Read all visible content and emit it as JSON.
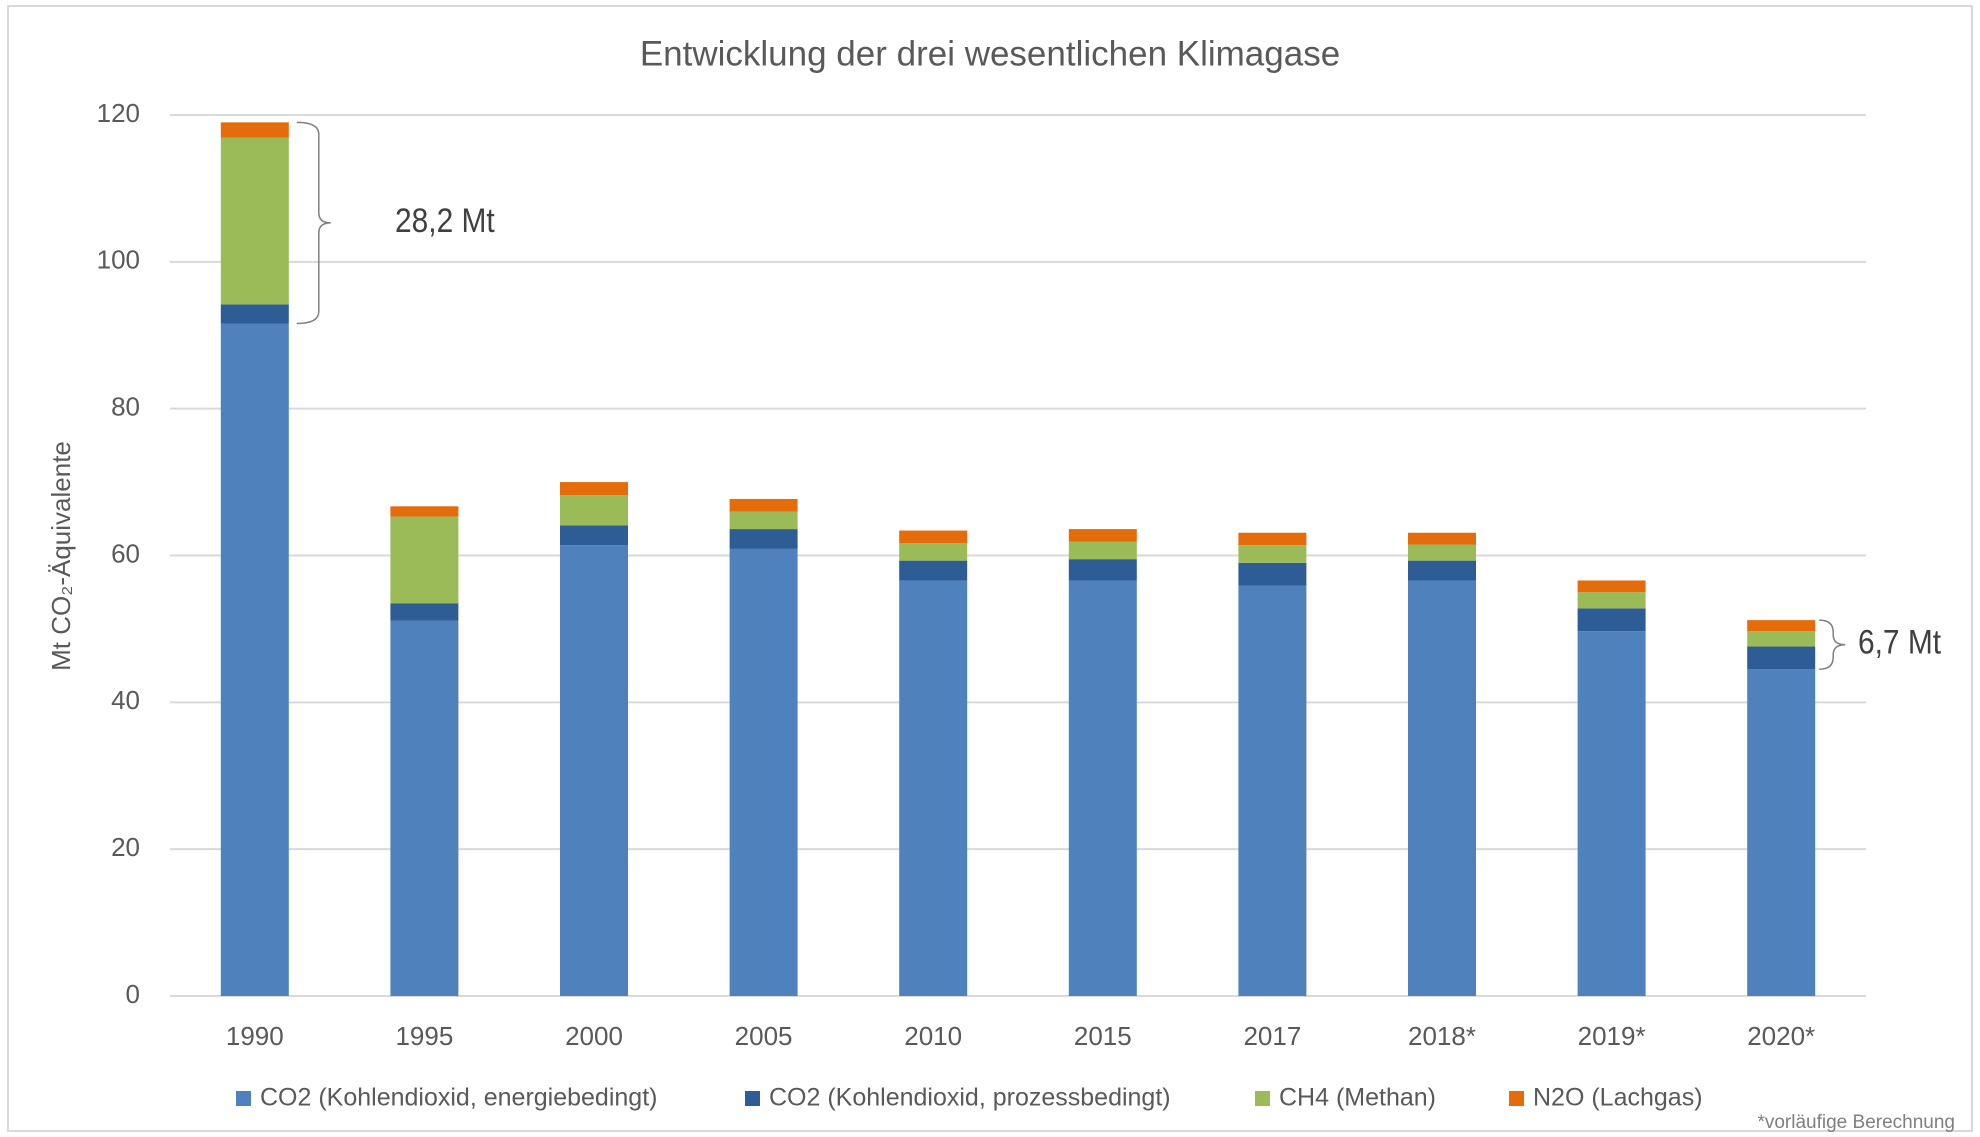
{
  "chart_data": {
    "type": "stacked_bar",
    "title": "Entwicklung der drei wesentlichen Klimagase",
    "y_label": "Mt CO₂-Äquivalente",
    "categories": [
      "1990",
      "1995",
      "2000",
      "2005",
      "2010",
      "2015",
      "2017",
      "2018*",
      "2019*",
      "2020*"
    ],
    "series": [
      {
        "name": "CO2 (Kohlendioxid, energiebedingt)",
        "color": "#4f81bd",
        "values": [
          91.6,
          51.1,
          61.4,
          60.9,
          56.6,
          56.6,
          55.9,
          56.6,
          49.7,
          44.5
        ]
      },
      {
        "name": "CO2 (Kohlendioxid, prozessbedingt)",
        "color": "#2e5c94",
        "values": [
          2.6,
          2.4,
          2.7,
          2.7,
          2.7,
          2.9,
          3.1,
          2.7,
          3.1,
          3.1
        ]
      },
      {
        "name": "CH4 (Methan)",
        "color": "#9bbb59",
        "values": [
          22.7,
          11.8,
          4.1,
          2.4,
          2.4,
          2.4,
          2.4,
          2.2,
          2.2,
          2.1
        ]
      },
      {
        "name": "N2O (Lachgas)",
        "color": "#e46c0a",
        "values": [
          2.1,
          1.4,
          1.8,
          1.7,
          1.7,
          1.7,
          1.7,
          1.6,
          1.6,
          1.5
        ]
      }
    ],
    "ylim": [
      0,
      120
    ],
    "yticks": [
      0,
      20,
      40,
      60,
      80,
      100,
      120
    ],
    "grid": true,
    "legend": "bottom",
    "annotations": [
      "28,2 Mt",
      "6,7 Mt"
    ],
    "footnote": "*vorläufige Berechnung"
  }
}
